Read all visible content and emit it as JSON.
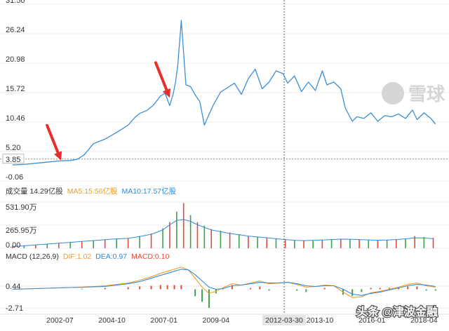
{
  "chart_data": [
    {
      "type": "line",
      "panel": "price",
      "yticks": [
        "31.50",
        "26.24",
        "20.98",
        "15.72",
        "10.46",
        "5.20",
        "-0.06"
      ],
      "ylim": [
        -0.06,
        31.5
      ],
      "current_price_label": "3.85",
      "current_price": 3.85,
      "series": [
        {
          "color": "#3a8fd6",
          "x": [
            2000.5,
            2001.0,
            2001.5,
            2002.0,
            2002.5,
            2003.0,
            2003.3,
            2003.6,
            2004.0,
            2004.5,
            2005.0,
            2005.5,
            2005.8,
            2006.0,
            2006.3,
            2006.6,
            2006.9,
            2007.1,
            2007.3,
            2007.45,
            2007.55,
            2007.65,
            2007.8,
            2008.0,
            2008.2,
            2008.4,
            2008.6,
            2008.8,
            2009.0,
            2009.2,
            2009.5,
            2009.8,
            2010.1,
            2010.4,
            2010.7,
            2011.0,
            2011.3,
            2011.6,
            2011.9,
            2012.2,
            2012.4,
            2012.7,
            2013.0,
            2013.3,
            2013.6,
            2013.9,
            2014.1,
            2014.4,
            2014.7,
            2014.9,
            2015.2,
            2015.4,
            2015.7,
            2016.0,
            2016.3,
            2016.6,
            2016.9,
            2017.2,
            2017.5,
            2017.8,
            2018.0,
            2018.3,
            2018.6,
            2018.8
          ],
          "values": [
            2.8,
            2.9,
            3.1,
            3.3,
            3.5,
            3.6,
            3.8,
            4.6,
            6.6,
            7.4,
            8.6,
            9.9,
            11.3,
            12.0,
            12.5,
            13.5,
            15.1,
            15.6,
            13.4,
            15.5,
            17.6,
            20.7,
            28.6,
            17.1,
            16.8,
            15.3,
            14.1,
            9.9,
            11.8,
            13.6,
            15.8,
            16.6,
            17.4,
            15.4,
            18.2,
            19.9,
            16.4,
            17.6,
            19.6,
            19.1,
            17.4,
            18.7,
            15.9,
            17.6,
            16.1,
            19.6,
            17.1,
            17.6,
            16.4,
            12.9,
            10.6,
            11.4,
            11.1,
            12.1,
            10.6,
            11.6,
            11.4,
            11.9,
            11.1,
            12.6,
            10.9,
            12.1,
            11.1,
            10.1
          ]
        }
      ],
      "annotations": [
        {
          "type": "arrow",
          "color": "#e8302a",
          "x": 2002.6,
          "y": 3.6
        },
        {
          "type": "arrow",
          "color": "#e8302a",
          "x": 2007.3,
          "y": 14.8
        }
      ],
      "crosshair_x": 2012.25,
      "watermark": "雪球"
    },
    {
      "type": "bar",
      "panel": "volume",
      "title": "成交量 14.29亿股",
      "ma_labels": [
        {
          "text": "MA5:15.56亿股",
          "color": "#f29d27"
        },
        {
          "text": "MA10:17.57亿股",
          "color": "#2f8bd6"
        }
      ],
      "yticks": [
        "531.90万",
        "265.95万",
        "0.00"
      ],
      "ylim": [
        0,
        531.9
      ],
      "unit": "万",
      "x": [
        2000.5,
        2001.0,
        2001.5,
        2002.0,
        2002.5,
        2003.0,
        2003.5,
        2004.0,
        2004.5,
        2005.0,
        2005.5,
        2006.0,
        2006.5,
        2007.0,
        2007.3,
        2007.6,
        2007.9,
        2008.2,
        2008.5,
        2008.8,
        2009.1,
        2009.5,
        2009.9,
        2010.3,
        2010.7,
        2011.1,
        2011.5,
        2011.9,
        2012.3,
        2012.7,
        2013.1,
        2013.5,
        2013.9,
        2014.3,
        2014.7,
        2015.1,
        2015.5,
        2015.9,
        2016.3,
        2016.7,
        2017.1,
        2017.5,
        2017.9,
        2018.3,
        2018.7
      ],
      "values": [
        20,
        30,
        40,
        50,
        60,
        70,
        80,
        90,
        100,
        110,
        115,
        140,
        170,
        230,
        300,
        420,
        520,
        380,
        300,
        260,
        220,
        200,
        180,
        160,
        140,
        130,
        120,
        110,
        100,
        90,
        85,
        90,
        95,
        100,
        110,
        105,
        100,
        95,
        90,
        95,
        105,
        110,
        140,
        130,
        120
      ],
      "ma10": [
        20,
        28,
        38,
        48,
        58,
        68,
        78,
        88,
        98,
        108,
        114,
        135,
        160,
        210,
        270,
        320,
        330,
        310,
        270,
        240,
        210,
        190,
        170,
        155,
        140,
        130,
        120,
        110,
        100,
        92,
        88,
        90,
        94,
        100,
        105,
        104,
        100,
        96,
        93,
        94,
        100,
        108,
        120,
        118,
        110
      ],
      "series": [
        {
          "color": "#e04b3a"
        },
        {
          "color": "#3aa44a"
        }
      ]
    },
    {
      "type": "bar",
      "panel": "macd",
      "title": "MACD (12,26,9)",
      "indicators": [
        {
          "text": "DIF:1.02",
          "color": "#f29d27"
        },
        {
          "text": "DEA:0.97",
          "color": "#2f8bd6"
        },
        {
          "text": "MACD:0.10",
          "color": "#e04b3a"
        }
      ],
      "yticks": [
        "0.44",
        "-2.71"
      ],
      "ylim": [
        -3.4,
        3.9
      ],
      "x": [
        2000.5,
        2001.5,
        2002.5,
        2003.5,
        2004.5,
        2005.5,
        2006.0,
        2006.5,
        2006.9,
        2007.2,
        2007.5,
        2007.8,
        2008.1,
        2008.4,
        2008.7,
        2009.0,
        2009.3,
        2009.6,
        2010.0,
        2010.4,
        2010.8,
        2011.2,
        2011.6,
        2012.0,
        2012.4,
        2012.8,
        2013.2,
        2013.6,
        2014.0,
        2014.4,
        2014.8,
        2015.2,
        2015.6,
        2016.0,
        2016.4,
        2016.8,
        2017.2,
        2017.6,
        2018.0,
        2018.4,
        2018.8
      ],
      "dif": [
        0.0,
        0.1,
        0.2,
        0.3,
        0.5,
        0.9,
        1.3,
        1.8,
        2.3,
        2.6,
        2.9,
        3.2,
        2.8,
        1.6,
        0.3,
        -0.6,
        -0.3,
        0.2,
        0.8,
        0.6,
        0.9,
        1.2,
        0.8,
        0.9,
        1.0,
        0.7,
        0.3,
        0.4,
        0.6,
        0.5,
        -0.4,
        -1.2,
        -1.1,
        -0.5,
        -0.3,
        0.0,
        0.3,
        0.7,
        0.9,
        0.5,
        0.3
      ],
      "dea": [
        0.0,
        0.1,
        0.2,
        0.3,
        0.4,
        0.8,
        1.1,
        1.6,
        2.0,
        2.3,
        2.6,
        2.9,
        2.8,
        2.1,
        1.2,
        0.3,
        0.0,
        0.1,
        0.5,
        0.6,
        0.8,
        1.0,
        0.9,
        0.9,
        1.0,
        0.8,
        0.5,
        0.4,
        0.5,
        0.5,
        0.0,
        -0.7,
        -0.9,
        -0.6,
        -0.4,
        -0.1,
        0.2,
        0.5,
        0.7,
        0.6,
        0.4
      ],
      "macd": [
        0.0,
        0.0,
        0.0,
        0.1,
        0.2,
        0.3,
        0.4,
        0.5,
        0.6,
        0.6,
        0.6,
        0.6,
        0.0,
        -1.0,
        -1.8,
        -2.7,
        -0.6,
        0.2,
        0.6,
        0.0,
        0.2,
        0.4,
        -0.2,
        0.0,
        0.0,
        -0.2,
        -0.4,
        0.0,
        0.2,
        0.0,
        -0.8,
        -1.0,
        -0.4,
        0.2,
        0.2,
        0.2,
        0.2,
        0.4,
        0.4,
        -0.2,
        -0.2
      ],
      "colors": {
        "dif": "#f29d27",
        "dea": "#2f8bd6",
        "up": "#e04b3a",
        "down": "#3aa44a"
      }
    }
  ],
  "x_axis": {
    "ticks": [
      {
        "label": "2002-07",
        "x": 2002.55
      },
      {
        "label": "2004-10",
        "x": 2004.8
      },
      {
        "label": "2007-01",
        "x": 2007.05
      },
      {
        "label": "2009-04",
        "x": 2009.3
      },
      {
        "label": "20",
        "x": 2011.55
      },
      {
        "label": "2013-10",
        "x": 2013.8
      },
      {
        "label": "2016-01",
        "x": 2016.05
      },
      {
        "label": "2018-04",
        "x": 2018.3
      }
    ],
    "crosshair_label": "2012-03-30",
    "xlim": [
      2000.2,
      2019.2
    ]
  },
  "overlay": {
    "source_text": "头条 @津波金融"
  }
}
